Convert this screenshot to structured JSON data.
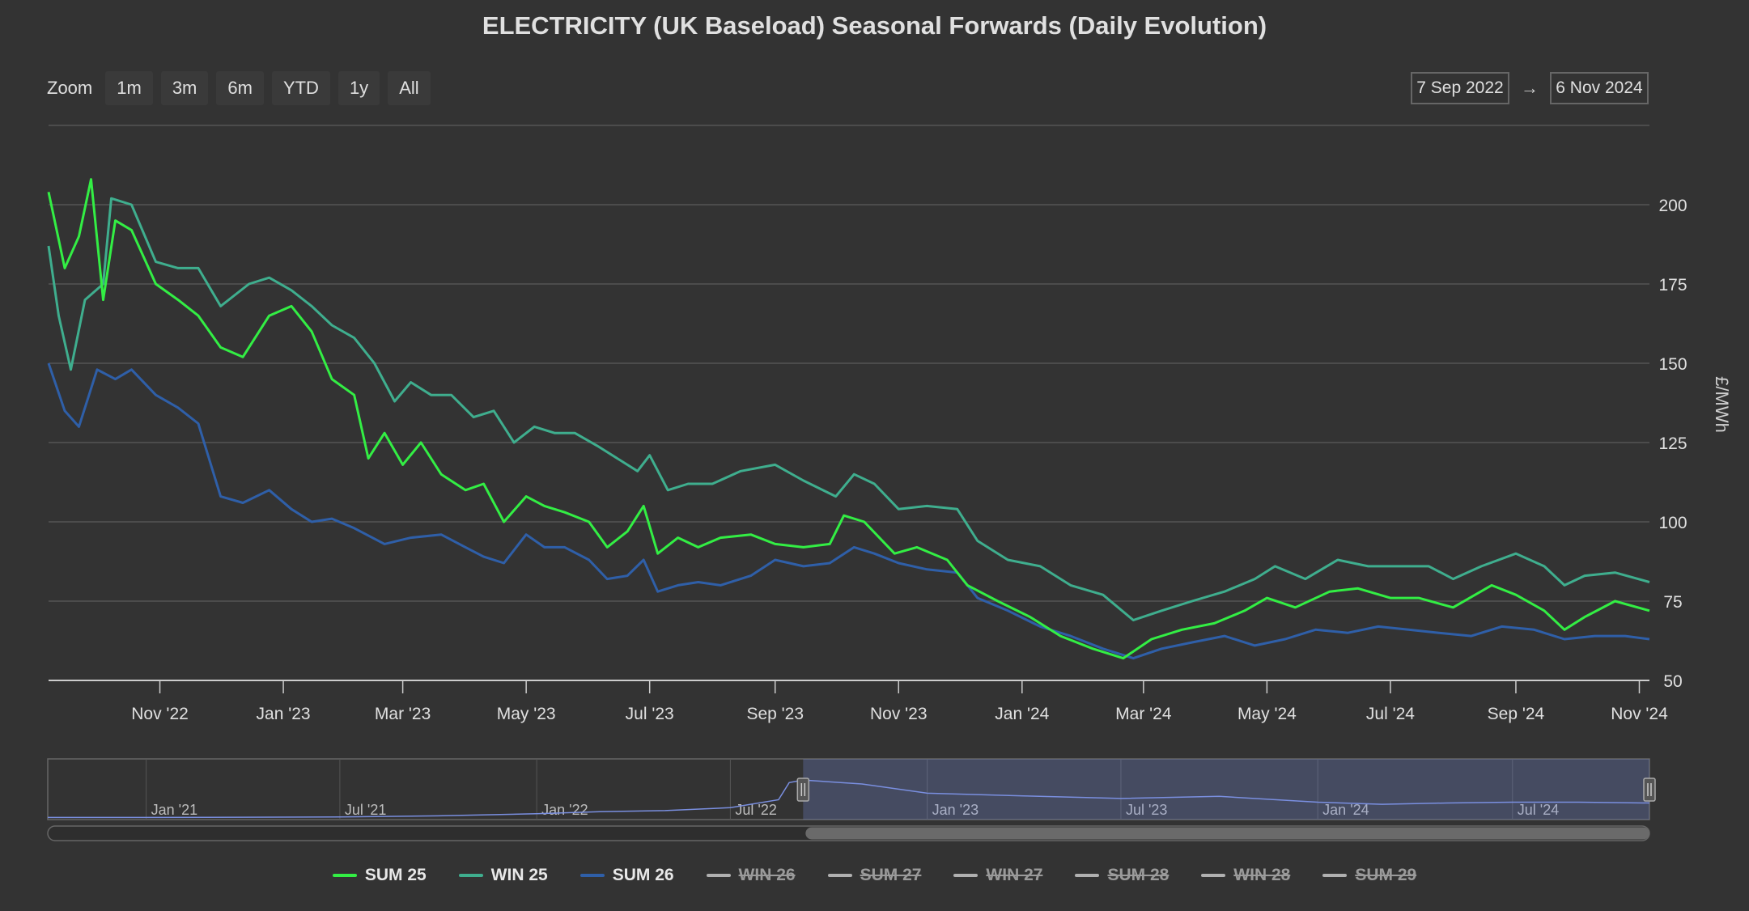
{
  "title": "ELECTRICITY (UK Baseload) Seasonal Forwards (Daily Evolution)",
  "toolbar": {
    "zoom_label": "Zoom",
    "buttons": [
      "1m",
      "3m",
      "6m",
      "YTD",
      "1y",
      "All"
    ]
  },
  "range": {
    "from": "7 Sep 2022",
    "arrow": "→",
    "to": "6 Nov 2024"
  },
  "chart_data": {
    "type": "line",
    "title": "ELECTRICITY (UK Baseload) Seasonal Forwards (Daily Evolution)",
    "xlabel": "",
    "ylabel": "£/MWh",
    "x_range": [
      "2022-09-07",
      "2024-11-06"
    ],
    "ylim": [
      50,
      225
    ],
    "y_ticks": [
      50,
      75,
      100,
      125,
      150,
      175,
      200
    ],
    "x_tick_labels": [
      "Nov '22",
      "Jan '23",
      "Mar '23",
      "May '23",
      "Jul '23",
      "Sep '23",
      "Nov '23",
      "Jan '24",
      "Mar '24",
      "May '24",
      "Jul '24",
      "Sep '24",
      "Nov '24"
    ],
    "grid": true,
    "legend_position": "bottom",
    "series": [
      {
        "name": "SUM 25",
        "color": "#33ee44",
        "visible": true,
        "points": [
          [
            "2022-09-07",
            204
          ],
          [
            "2022-09-15",
            180
          ],
          [
            "2022-09-22",
            190
          ],
          [
            "2022-09-28",
            208
          ],
          [
            "2022-10-04",
            170
          ],
          [
            "2022-10-10",
            195
          ],
          [
            "2022-10-18",
            192
          ],
          [
            "2022-10-30",
            175
          ],
          [
            "2022-11-10",
            170
          ],
          [
            "2022-11-20",
            165
          ],
          [
            "2022-12-01",
            155
          ],
          [
            "2022-12-12",
            152
          ],
          [
            "2022-12-25",
            165
          ],
          [
            "2023-01-05",
            168
          ],
          [
            "2023-01-15",
            160
          ],
          [
            "2023-01-25",
            145
          ],
          [
            "2023-02-05",
            140
          ],
          [
            "2023-02-12",
            120
          ],
          [
            "2023-02-20",
            128
          ],
          [
            "2023-03-01",
            118
          ],
          [
            "2023-03-10",
            125
          ],
          [
            "2023-03-20",
            115
          ],
          [
            "2023-04-01",
            110
          ],
          [
            "2023-04-10",
            112
          ],
          [
            "2023-04-20",
            100
          ],
          [
            "2023-05-01",
            108
          ],
          [
            "2023-05-10",
            105
          ],
          [
            "2023-05-20",
            103
          ],
          [
            "2023-06-01",
            100
          ],
          [
            "2023-06-10",
            92
          ],
          [
            "2023-06-20",
            97
          ],
          [
            "2023-06-28",
            105
          ],
          [
            "2023-07-05",
            90
          ],
          [
            "2023-07-15",
            95
          ],
          [
            "2023-07-25",
            92
          ],
          [
            "2023-08-05",
            95
          ],
          [
            "2023-08-20",
            96
          ],
          [
            "2023-09-01",
            93
          ],
          [
            "2023-09-15",
            92
          ],
          [
            "2023-09-28",
            93
          ],
          [
            "2023-10-05",
            102
          ],
          [
            "2023-10-15",
            100
          ],
          [
            "2023-10-30",
            90
          ],
          [
            "2023-11-10",
            92
          ],
          [
            "2023-11-25",
            88
          ],
          [
            "2023-12-05",
            80
          ],
          [
            "2023-12-20",
            75
          ],
          [
            "2024-01-05",
            70
          ],
          [
            "2024-01-20",
            64
          ],
          [
            "2024-02-05",
            60
          ],
          [
            "2024-02-20",
            57
          ],
          [
            "2024-03-05",
            63
          ],
          [
            "2024-03-20",
            66
          ],
          [
            "2024-04-05",
            68
          ],
          [
            "2024-04-20",
            72
          ],
          [
            "2024-05-01",
            76
          ],
          [
            "2024-05-15",
            73
          ],
          [
            "2024-06-01",
            78
          ],
          [
            "2024-06-15",
            79
          ],
          [
            "2024-07-01",
            76
          ],
          [
            "2024-07-15",
            76
          ],
          [
            "2024-08-01",
            73
          ],
          [
            "2024-08-20",
            80
          ],
          [
            "2024-09-01",
            77
          ],
          [
            "2024-09-15",
            72
          ],
          [
            "2024-09-25",
            66
          ],
          [
            "2024-10-05",
            70
          ],
          [
            "2024-10-20",
            75
          ],
          [
            "2024-11-06",
            72
          ]
        ]
      },
      {
        "name": "WIN 25",
        "color": "#3fae8e",
        "visible": true,
        "points": [
          [
            "2022-09-07",
            187
          ],
          [
            "2022-09-12",
            165
          ],
          [
            "2022-09-18",
            148
          ],
          [
            "2022-09-25",
            170
          ],
          [
            "2022-10-04",
            175
          ],
          [
            "2022-10-08",
            202
          ],
          [
            "2022-10-18",
            200
          ],
          [
            "2022-10-30",
            182
          ],
          [
            "2022-11-10",
            180
          ],
          [
            "2022-11-20",
            180
          ],
          [
            "2022-12-01",
            168
          ],
          [
            "2022-12-15",
            175
          ],
          [
            "2022-12-25",
            177
          ],
          [
            "2023-01-05",
            173
          ],
          [
            "2023-01-15",
            168
          ],
          [
            "2023-01-25",
            162
          ],
          [
            "2023-02-05",
            158
          ],
          [
            "2023-02-15",
            150
          ],
          [
            "2023-02-25",
            138
          ],
          [
            "2023-03-05",
            144
          ],
          [
            "2023-03-15",
            140
          ],
          [
            "2023-03-25",
            140
          ],
          [
            "2023-04-05",
            133
          ],
          [
            "2023-04-15",
            135
          ],
          [
            "2023-04-25",
            125
          ],
          [
            "2023-05-05",
            130
          ],
          [
            "2023-05-15",
            128
          ],
          [
            "2023-05-25",
            128
          ],
          [
            "2023-06-05",
            124
          ],
          [
            "2023-06-15",
            120
          ],
          [
            "2023-06-25",
            116
          ],
          [
            "2023-07-01",
            121
          ],
          [
            "2023-07-10",
            110
          ],
          [
            "2023-07-20",
            112
          ],
          [
            "2023-08-01",
            112
          ],
          [
            "2023-08-15",
            116
          ],
          [
            "2023-09-01",
            118
          ],
          [
            "2023-09-15",
            113
          ],
          [
            "2023-10-01",
            108
          ],
          [
            "2023-10-10",
            115
          ],
          [
            "2023-10-20",
            112
          ],
          [
            "2023-11-01",
            104
          ],
          [
            "2023-11-15",
            105
          ],
          [
            "2023-11-30",
            104
          ],
          [
            "2023-12-10",
            94
          ],
          [
            "2023-12-25",
            88
          ],
          [
            "2024-01-10",
            86
          ],
          [
            "2024-01-25",
            80
          ],
          [
            "2024-02-10",
            77
          ],
          [
            "2024-02-25",
            69
          ],
          [
            "2024-03-10",
            72
          ],
          [
            "2024-03-25",
            75
          ],
          [
            "2024-04-10",
            78
          ],
          [
            "2024-04-25",
            82
          ],
          [
            "2024-05-05",
            86
          ],
          [
            "2024-05-20",
            82
          ],
          [
            "2024-06-05",
            88
          ],
          [
            "2024-06-20",
            86
          ],
          [
            "2024-07-05",
            86
          ],
          [
            "2024-07-20",
            86
          ],
          [
            "2024-08-01",
            82
          ],
          [
            "2024-08-15",
            86
          ],
          [
            "2024-09-01",
            90
          ],
          [
            "2024-09-15",
            86
          ],
          [
            "2024-09-25",
            80
          ],
          [
            "2024-10-05",
            83
          ],
          [
            "2024-10-20",
            84
          ],
          [
            "2024-11-06",
            81
          ]
        ]
      },
      {
        "name": "SUM 26",
        "color": "#2f5fa8",
        "visible": true,
        "points": [
          [
            "2022-09-07",
            150
          ],
          [
            "2022-09-15",
            135
          ],
          [
            "2022-09-22",
            130
          ],
          [
            "2022-10-01",
            148
          ],
          [
            "2022-10-10",
            145
          ],
          [
            "2022-10-18",
            148
          ],
          [
            "2022-10-30",
            140
          ],
          [
            "2022-11-10",
            136
          ],
          [
            "2022-11-20",
            131
          ],
          [
            "2022-12-01",
            108
          ],
          [
            "2022-12-12",
            106
          ],
          [
            "2022-12-25",
            110
          ],
          [
            "2023-01-05",
            104
          ],
          [
            "2023-01-15",
            100
          ],
          [
            "2023-01-25",
            101
          ],
          [
            "2023-02-05",
            98
          ],
          [
            "2023-02-20",
            93
          ],
          [
            "2023-03-05",
            95
          ],
          [
            "2023-03-20",
            96
          ],
          [
            "2023-04-01",
            92
          ],
          [
            "2023-04-10",
            89
          ],
          [
            "2023-04-20",
            87
          ],
          [
            "2023-05-01",
            96
          ],
          [
            "2023-05-10",
            92
          ],
          [
            "2023-05-20",
            92
          ],
          [
            "2023-06-01",
            88
          ],
          [
            "2023-06-10",
            82
          ],
          [
            "2023-06-20",
            83
          ],
          [
            "2023-06-28",
            88
          ],
          [
            "2023-07-05",
            78
          ],
          [
            "2023-07-15",
            80
          ],
          [
            "2023-07-25",
            81
          ],
          [
            "2023-08-05",
            80
          ],
          [
            "2023-08-20",
            83
          ],
          [
            "2023-09-01",
            88
          ],
          [
            "2023-09-15",
            86
          ],
          [
            "2023-09-28",
            87
          ],
          [
            "2023-10-10",
            92
          ],
          [
            "2023-10-20",
            90
          ],
          [
            "2023-11-01",
            87
          ],
          [
            "2023-11-15",
            85
          ],
          [
            "2023-11-30",
            84
          ],
          [
            "2023-12-10",
            76
          ],
          [
            "2023-12-25",
            72
          ],
          [
            "2024-01-10",
            67
          ],
          [
            "2024-01-25",
            64
          ],
          [
            "2024-02-10",
            60
          ],
          [
            "2024-02-25",
            57
          ],
          [
            "2024-03-10",
            60
          ],
          [
            "2024-03-25",
            62
          ],
          [
            "2024-04-10",
            64
          ],
          [
            "2024-04-25",
            61
          ],
          [
            "2024-05-10",
            63
          ],
          [
            "2024-05-25",
            66
          ],
          [
            "2024-06-10",
            65
          ],
          [
            "2024-06-25",
            67
          ],
          [
            "2024-07-10",
            66
          ],
          [
            "2024-07-25",
            65
          ],
          [
            "2024-08-10",
            64
          ],
          [
            "2024-08-25",
            67
          ],
          [
            "2024-09-10",
            66
          ],
          [
            "2024-09-25",
            63
          ],
          [
            "2024-10-10",
            64
          ],
          [
            "2024-10-25",
            64
          ],
          [
            "2024-11-06",
            63
          ]
        ]
      },
      {
        "name": "WIN 26",
        "color": "#b0b0b0",
        "visible": false,
        "points": []
      },
      {
        "name": "SUM 27",
        "color": "#b0b0b0",
        "visible": false,
        "points": []
      },
      {
        "name": "WIN 27",
        "color": "#b0b0b0",
        "visible": false,
        "points": []
      },
      {
        "name": "SUM 28",
        "color": "#b0b0b0",
        "visible": false,
        "points": []
      },
      {
        "name": "WIN 28",
        "color": "#b0b0b0",
        "visible": false,
        "points": []
      },
      {
        "name": "SUM 29",
        "color": "#b0b0b0",
        "visible": false,
        "points": []
      }
    ],
    "navigator": {
      "x_range": [
        "2020-10-01",
        "2024-11-06"
      ],
      "tick_labels": [
        "Jan '21",
        "Jul '21",
        "Jan '22",
        "Jul '22",
        "Jan '23",
        "Jul '23",
        "Jan '24",
        "Jul '24"
      ],
      "selected_range": [
        "2022-09-07",
        "2024-11-06"
      ],
      "ylim": [
        0,
        230
      ],
      "series": [
        [
          "2020-10-01",
          8
        ],
        [
          "2021-01-01",
          8
        ],
        [
          "2021-04-01",
          9
        ],
        [
          "2021-07-01",
          10
        ],
        [
          "2021-10-01",
          14
        ],
        [
          "2022-01-01",
          22
        ],
        [
          "2022-03-01",
          30
        ],
        [
          "2022-05-01",
          34
        ],
        [
          "2022-07-01",
          45
        ],
        [
          "2022-08-15",
          75
        ],
        [
          "2022-08-25",
          140
        ],
        [
          "2022-09-07",
          150
        ],
        [
          "2022-11-01",
          135
        ],
        [
          "2023-01-01",
          100
        ],
        [
          "2023-04-01",
          90
        ],
        [
          "2023-07-01",
          80
        ],
        [
          "2023-10-01",
          88
        ],
        [
          "2024-01-01",
          66
        ],
        [
          "2024-03-01",
          58
        ],
        [
          "2024-05-01",
          63
        ],
        [
          "2024-07-01",
          66
        ],
        [
          "2024-09-01",
          66
        ],
        [
          "2024-11-06",
          63
        ]
      ]
    }
  }
}
